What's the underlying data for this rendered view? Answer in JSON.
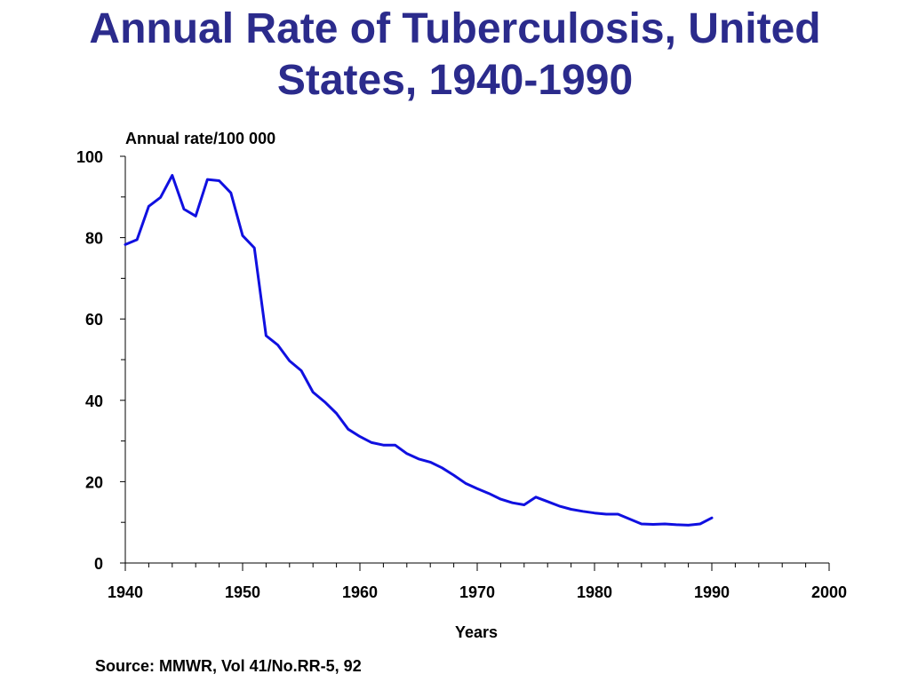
{
  "title": "Annual Rate of Tuberculosis, United States, 1940-1990",
  "source": "Source: MMWR, Vol 41/No.RR-5, 92",
  "chart_data": {
    "type": "line",
    "title": "Annual Rate of Tuberculosis, United States, 1940-1990",
    "ylabel": "Annual rate/100 000",
    "xlabel": "Years",
    "xlim": [
      1940,
      2000
    ],
    "ylim": [
      0,
      100
    ],
    "x_ticks": [
      1940,
      1950,
      1960,
      1970,
      1980,
      1990,
      2000
    ],
    "y_ticks": [
      0,
      20,
      40,
      60,
      80,
      100
    ],
    "grid": false,
    "legend": "none",
    "line_color": "#1010e0",
    "series": [
      {
        "name": "",
        "x": [
          1940,
          1941,
          1942,
          1943,
          1944,
          1945,
          1946,
          1947,
          1948,
          1949,
          1950,
          1951,
          1952,
          1953,
          1954,
          1955,
          1956,
          1957,
          1958,
          1959,
          1960,
          1961,
          1962,
          1963,
          1964,
          1965,
          1966,
          1967,
          1968,
          1969,
          1970,
          1971,
          1972,
          1973,
          1974,
          1975,
          1976,
          1977,
          1978,
          1979,
          1980,
          1981,
          1982,
          1983,
          1984,
          1985,
          1986,
          1987,
          1988,
          1989,
          1990
        ],
        "values": [
          78.3,
          79.5,
          87.7,
          89.9,
          95.3,
          87.0,
          85.3,
          94.3,
          94.0,
          91.0,
          80.5,
          77.5,
          55.9,
          53.6,
          49.7,
          47.3,
          42.0,
          39.6,
          36.8,
          32.9,
          31.1,
          29.6,
          29.0,
          29.0,
          26.9,
          25.6,
          24.8,
          23.4,
          21.6,
          19.6,
          18.3,
          17.1,
          15.7,
          14.8,
          14.3,
          16.2,
          15.1,
          14.0,
          13.2,
          12.7,
          12.3,
          12.0,
          12.0,
          10.8,
          9.6,
          9.5,
          9.6,
          9.4,
          9.3,
          9.6,
          11.1
        ]
      }
    ]
  }
}
